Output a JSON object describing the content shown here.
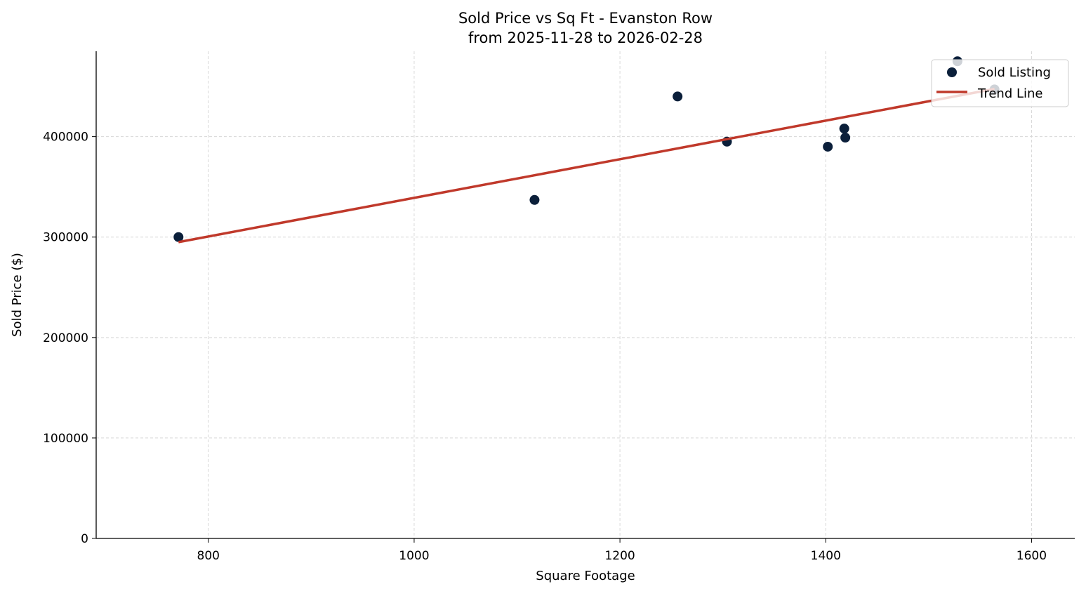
{
  "chart_data": {
    "type": "scatter",
    "title": "Sold Price vs Sq Ft - Evanston Row",
    "subtitle": "from 2025-11-28 to 2026-02-28",
    "xlabel": "Square Footage",
    "ylabel": "Sold Price ($)",
    "xlim": [
      691,
      1642
    ],
    "ylim": [
      0,
      485000
    ],
    "xticks": [
      800,
      1000,
      1200,
      1400,
      1600
    ],
    "yticks": [
      0,
      100000,
      200000,
      300000,
      400000
    ],
    "grid": true,
    "legend_position": "top-right",
    "series": [
      {
        "name": "Sold Listing",
        "type": "scatter",
        "color": "#0b1f3a",
        "points": [
          {
            "x": 771,
            "y": 300000
          },
          {
            "x": 1117,
            "y": 337000
          },
          {
            "x": 1256,
            "y": 440000
          },
          {
            "x": 1304,
            "y": 395000
          },
          {
            "x": 1402,
            "y": 390000
          },
          {
            "x": 1418,
            "y": 408000
          },
          {
            "x": 1419,
            "y": 399000
          },
          {
            "x": 1528,
            "y": 475000
          },
          {
            "x": 1564,
            "y": 447000
          }
        ]
      },
      {
        "name": "Trend Line",
        "type": "line",
        "color": "#c0392b",
        "points": [
          {
            "x": 771,
            "y": 295000
          },
          {
            "x": 1564,
            "y": 447500
          }
        ]
      }
    ]
  }
}
